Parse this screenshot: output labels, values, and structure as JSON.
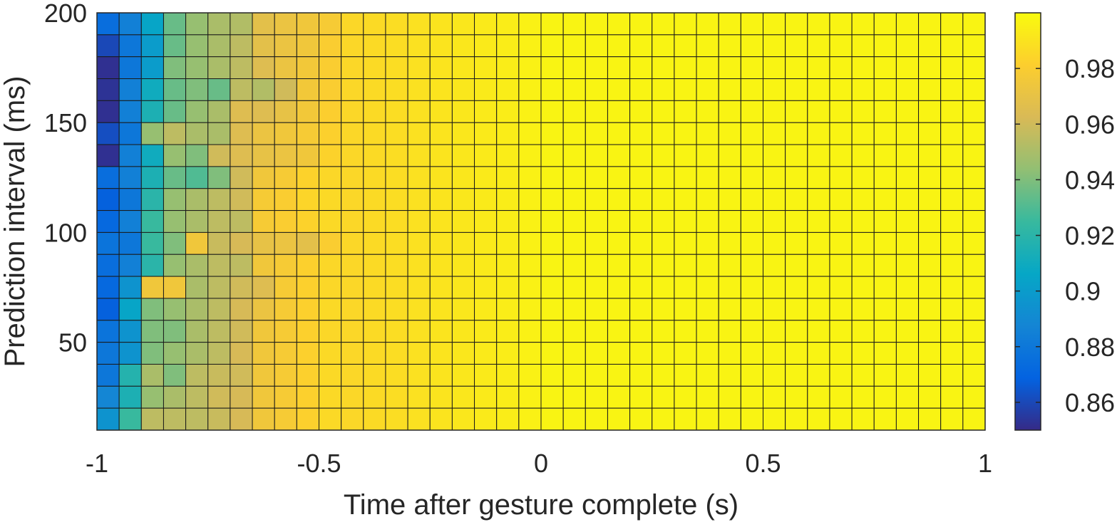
{
  "chart_data": {
    "type": "heatmap",
    "title": "",
    "xlabel": "Time after gesture complete (s)",
    "ylabel": "Prediction interval (ms)",
    "x_range": [
      -1,
      1
    ],
    "y_range": [
      10,
      200
    ],
    "x_cell_centers": [
      -0.975,
      -0.925,
      -0.875,
      -0.825,
      -0.775,
      -0.725,
      -0.675,
      -0.625,
      -0.575,
      -0.525,
      -0.475,
      -0.425,
      -0.375,
      -0.325,
      -0.275,
      -0.225,
      -0.175,
      -0.125,
      -0.075,
      -0.025,
      0.025,
      0.075,
      0.125,
      0.175,
      0.225,
      0.275,
      0.325,
      0.375,
      0.425,
      0.475,
      0.525,
      0.575,
      0.625,
      0.675,
      0.725,
      0.775,
      0.825,
      0.875,
      0.925,
      0.975
    ],
    "y_cell_centers": [
      195,
      185,
      175,
      165,
      155,
      145,
      135,
      125,
      115,
      105,
      95,
      85,
      75,
      65,
      55,
      45,
      35,
      25,
      15
    ],
    "x_ticks": [
      -1,
      -0.5,
      0,
      0.5,
      1
    ],
    "x_tick_labels": [
      "-1",
      "-0.5",
      "0",
      "0.5",
      "1"
    ],
    "y_ticks": [
      50,
      100,
      150,
      200
    ],
    "y_tick_labels": [
      "50",
      "100",
      "150",
      "200"
    ],
    "colorbar": {
      "range": [
        0.85,
        1.0
      ],
      "ticks": [
        0.86,
        0.88,
        0.9,
        0.92,
        0.94,
        0.96,
        0.98
      ],
      "tick_labels": [
        "0.86",
        "0.88",
        "0.9",
        "0.92",
        "0.94",
        "0.96",
        "0.98"
      ],
      "colormap": "parula"
    },
    "grid": false,
    "left_columns_values": [
      [
        0.875,
        0.885,
        0.905,
        0.935,
        0.945,
        0.95,
        0.952,
        0.968,
        0.972,
        0.975,
        0.978
      ],
      [
        0.86,
        0.88,
        0.9,
        0.935,
        0.945,
        0.95,
        0.955,
        0.968,
        0.972,
        0.975,
        0.98
      ],
      [
        0.852,
        0.88,
        0.9,
        0.94,
        0.945,
        0.95,
        0.955,
        0.965,
        0.972,
        0.976,
        0.98
      ],
      [
        0.853,
        0.885,
        0.91,
        0.935,
        0.94,
        0.935,
        0.955,
        0.952,
        0.96,
        0.976,
        0.98
      ],
      [
        0.852,
        0.885,
        0.915,
        0.935,
        0.945,
        0.95,
        0.965,
        0.965,
        0.97,
        0.976,
        0.981
      ],
      [
        0.862,
        0.88,
        0.945,
        0.955,
        0.95,
        0.95,
        0.965,
        0.972,
        0.975,
        0.978,
        0.982
      ],
      [
        0.852,
        0.885,
        0.91,
        0.945,
        0.94,
        0.96,
        0.965,
        0.97,
        0.972,
        0.975,
        0.983
      ],
      [
        0.875,
        0.885,
        0.915,
        0.935,
        0.93,
        0.94,
        0.96,
        0.975,
        0.978,
        0.983,
        0.985
      ],
      [
        0.868,
        0.88,
        0.92,
        0.945,
        0.95,
        0.955,
        0.96,
        0.978,
        0.98,
        0.984,
        0.986
      ],
      [
        0.872,
        0.885,
        0.925,
        0.945,
        0.95,
        0.955,
        0.955,
        0.978,
        0.98,
        0.983,
        0.986
      ],
      [
        0.878,
        0.88,
        0.925,
        0.94,
        0.975,
        0.958,
        0.962,
        0.97,
        0.972,
        0.968,
        0.98
      ],
      [
        0.875,
        0.885,
        0.92,
        0.945,
        0.95,
        0.955,
        0.955,
        0.975,
        0.978,
        0.982,
        0.985
      ],
      [
        0.872,
        0.895,
        0.975,
        0.975,
        0.95,
        0.955,
        0.96,
        0.965,
        0.978,
        0.982,
        0.985
      ],
      [
        0.868,
        0.905,
        0.94,
        0.945,
        0.95,
        0.955,
        0.962,
        0.972,
        0.978,
        0.982,
        0.986
      ],
      [
        0.878,
        0.895,
        0.94,
        0.94,
        0.95,
        0.955,
        0.96,
        0.975,
        0.978,
        0.982,
        0.985
      ],
      [
        0.88,
        0.895,
        0.94,
        0.945,
        0.95,
        0.955,
        0.962,
        0.975,
        0.978,
        0.982,
        0.986
      ],
      [
        0.88,
        0.918,
        0.95,
        0.94,
        0.955,
        0.958,
        0.96,
        0.975,
        0.978,
        0.982,
        0.986
      ],
      [
        0.888,
        0.915,
        0.945,
        0.95,
        0.955,
        0.96,
        0.962,
        0.975,
        0.978,
        0.982,
        0.986
      ],
      [
        0.895,
        0.925,
        0.955,
        0.955,
        0.955,
        0.958,
        0.962,
        0.975,
        0.978,
        0.982,
        0.986
      ]
    ],
    "remaining_columns_trend": {
      "from_column": 11,
      "start_value": 0.985,
      "plateau_value": 0.997,
      "plateau_from_column": 20
    }
  }
}
